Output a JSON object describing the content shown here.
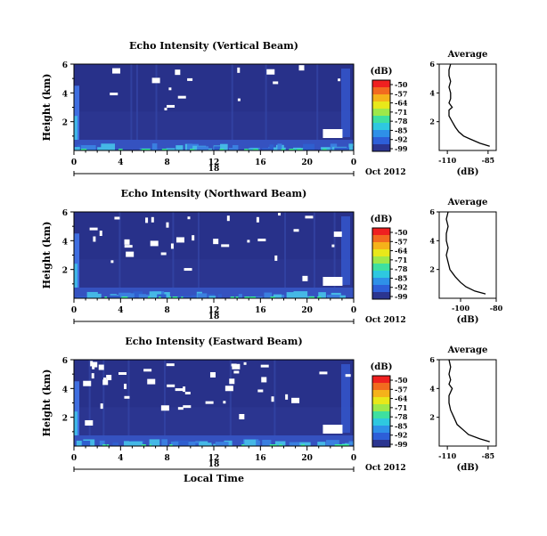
{
  "chart_data": [
    {
      "type": "heatmap",
      "title": "Echo Intensity (Vertical Beam)",
      "ylabel": "Height (km)",
      "yticks": [
        "2",
        "4",
        "6"
      ],
      "xticks": [
        "0",
        "4",
        "8",
        "12",
        "16",
        "20",
        "0"
      ],
      "day_label": "18",
      "date_label": "Oct 2012",
      "colorbar": {
        "unit": "(dB)",
        "ticks": [
          "-50",
          "-57",
          "-64",
          "-71",
          "-78",
          "-85",
          "-92",
          "-99"
        ]
      },
      "xlim": [
        0,
        24
      ],
      "ylim": [
        0,
        6
      ],
      "profile": {
        "title": "Average",
        "xlabel": "(dB)",
        "xticks": [
          "-110",
          "-85"
        ],
        "xlim": [
          -115,
          -80
        ],
        "yticks": [
          "2",
          "4",
          "6"
        ],
        "ylim": [
          0,
          6
        ],
        "height": [
          0.3,
          0.5,
          0.8,
          1.0,
          1.3,
          1.6,
          2.0,
          2.4,
          2.8,
          3.0,
          3.3,
          3.6,
          4.0,
          4.4,
          4.8,
          5.2,
          5.6,
          6.0
        ],
        "db": [
          -84,
          -90,
          -96,
          -100,
          -103,
          -105,
          -107,
          -109,
          -109,
          -107,
          -109,
          -108,
          -108,
          -109,
          -108,
          -109,
          -109,
          -108
        ]
      }
    },
    {
      "type": "heatmap",
      "title": "Echo Intensity (Northward Beam)",
      "ylabel": "Height (km)",
      "yticks": [
        "2",
        "4",
        "6"
      ],
      "xticks": [
        "0",
        "4",
        "8",
        "12",
        "16",
        "20",
        "0"
      ],
      "day_label": "18",
      "date_label": "Oct 2012",
      "colorbar": {
        "unit": "(dB)",
        "ticks": [
          "-50",
          "-57",
          "-64",
          "-71",
          "-78",
          "-85",
          "-92",
          "-99"
        ]
      },
      "xlim": [
        0,
        24
      ],
      "ylim": [
        0,
        6
      ],
      "profile": {
        "title": "Average",
        "xlabel": "(dB)",
        "xticks": [
          "-100",
          "-80"
        ],
        "xlim": [
          -112,
          -80
        ],
        "yticks": [
          "2",
          "4",
          "6"
        ],
        "ylim": [
          0,
          6
        ],
        "height": [
          0.3,
          0.5,
          0.8,
          1.1,
          1.5,
          2.0,
          2.5,
          3.0,
          3.5,
          4.0,
          4.5,
          5.0,
          5.5,
          6.0
        ],
        "db": [
          -86,
          -92,
          -97,
          -100,
          -103,
          -106,
          -107,
          -108,
          -107,
          -108,
          -108,
          -107,
          -108,
          -107
        ]
      }
    },
    {
      "type": "heatmap",
      "title": "Echo Intensity (Eastward Beam)",
      "ylabel": "Height (km)",
      "xlabel": "Local Time",
      "yticks": [
        "2",
        "4",
        "6"
      ],
      "xticks": [
        "0",
        "4",
        "8",
        "12",
        "16",
        "20",
        "0"
      ],
      "day_label": "18",
      "date_label": "Oct 2012",
      "colorbar": {
        "unit": "(dB)",
        "ticks": [
          "-50",
          "-57",
          "-64",
          "-71",
          "-78",
          "-85",
          "-92",
          "-99"
        ]
      },
      "xlim": [
        0,
        24
      ],
      "ylim": [
        0,
        6
      ],
      "profile": {
        "title": "Average",
        "xlabel": "(dB)",
        "xticks": [
          "-110",
          "-85"
        ],
        "xlim": [
          -115,
          -80
        ],
        "yticks": [
          "2",
          "4",
          "6"
        ],
        "ylim": [
          0,
          6
        ],
        "height": [
          0.3,
          0.5,
          0.8,
          1.1,
          1.5,
          2.0,
          2.5,
          3.0,
          3.5,
          4.0,
          4.3,
          4.6,
          5.0,
          5.5,
          6.0
        ],
        "db": [
          -84,
          -90,
          -97,
          -100,
          -104,
          -106,
          -108,
          -109,
          -109,
          -107,
          -109,
          -108,
          -109,
          -108,
          -109
        ]
      }
    }
  ]
}
